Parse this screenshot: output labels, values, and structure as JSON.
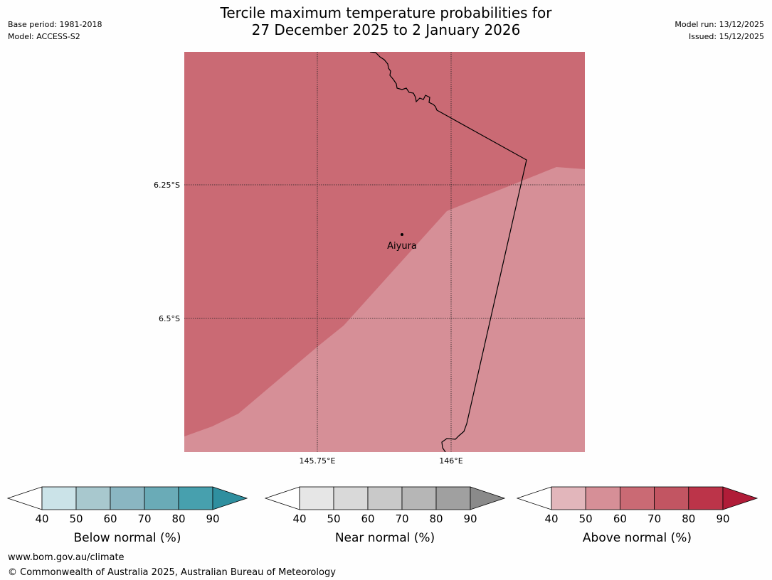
{
  "title": {
    "line1": "Tercile maximum temperature probabilities for",
    "line2": "27 December 2025 to 2 January 2026"
  },
  "meta": {
    "base_period": "Base period: 1981-2018",
    "model": "Model: ACCESS-S2",
    "model_run": "Model run: 13/12/2025",
    "issued": "Issued: 15/12/2025"
  },
  "map": {
    "lat_labels": [
      "6.25°S",
      "6.5°S"
    ],
    "lon_labels": [
      "145.75°E",
      "146°E"
    ],
    "place": "Aiyura",
    "fill_colors": {
      "above_60_70": "#ca6a74",
      "above_50_60": "#d68f97"
    }
  },
  "colorbars": [
    {
      "name": "below",
      "label": "Below normal (%)",
      "ticks": [
        "40",
        "50",
        "60",
        "70",
        "80",
        "90"
      ],
      "colors": [
        "#cbe3e8",
        "#a8c8ce",
        "#8ab6c2",
        "#6aabb7",
        "#47a0ae",
        "#2f8f9f"
      ]
    },
    {
      "name": "near",
      "label": "Near normal (%)",
      "ticks": [
        "40",
        "50",
        "60",
        "70",
        "80",
        "90"
      ],
      "colors": [
        "#e6e6e6",
        "#d9d9d9",
        "#c9c9c9",
        "#b6b6b6",
        "#a0a0a0",
        "#8a8a8a"
      ]
    },
    {
      "name": "above",
      "label": "Above normal (%)",
      "ticks": [
        "40",
        "50",
        "60",
        "70",
        "80",
        "90"
      ],
      "colors": [
        "#e2b6bb",
        "#d68f97",
        "#ca6a74",
        "#c25562",
        "#bc3449",
        "#b01c38"
      ]
    }
  ],
  "footer": {
    "url": "www.bom.gov.au/climate",
    "copyright": "© Commonwealth of Australia 2025, Australian Bureau of Meteorology"
  }
}
